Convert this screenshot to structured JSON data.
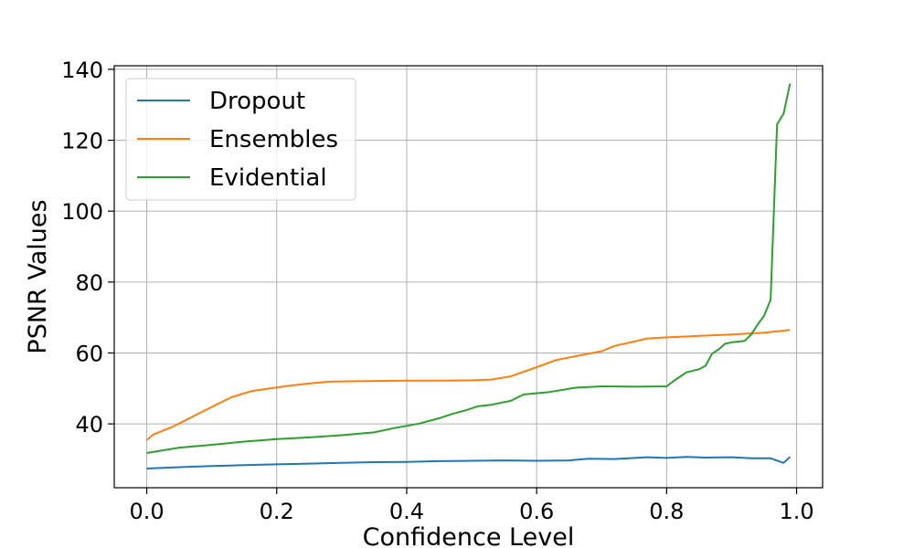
{
  "chart_data": {
    "type": "line",
    "title": "",
    "xlabel": "Confidence Level",
    "ylabel": "PSNR Values",
    "xlim": [
      -0.05,
      1.04
    ],
    "ylim": [
      22,
      141
    ],
    "xticks": [
      0.0,
      0.2,
      0.4,
      0.6,
      0.8,
      1.0
    ],
    "xtick_labels": [
      "0.0",
      "0.2",
      "0.4",
      "0.6",
      "0.8",
      "1.0"
    ],
    "yticks": [
      40,
      60,
      80,
      100,
      120,
      140
    ],
    "ytick_labels": [
      "40",
      "60",
      "80",
      "100",
      "120",
      "140"
    ],
    "grid": true,
    "legend_position": "top-left",
    "series": [
      {
        "name": "Dropout",
        "color": "#1f77b4",
        "x": [
          0.0,
          0.05,
          0.1,
          0.15,
          0.2,
          0.25,
          0.3,
          0.35,
          0.4,
          0.45,
          0.5,
          0.55,
          0.6,
          0.65,
          0.68,
          0.72,
          0.77,
          0.8,
          0.83,
          0.86,
          0.9,
          0.93,
          0.96,
          0.98,
          0.99
        ],
        "y": [
          27.4,
          27.8,
          28.1,
          28.4,
          28.6,
          28.8,
          29.0,
          29.2,
          29.3,
          29.5,
          29.6,
          29.7,
          29.6,
          29.7,
          30.2,
          30.1,
          30.6,
          30.4,
          30.7,
          30.5,
          30.6,
          30.3,
          30.3,
          29.0,
          30.7
        ]
      },
      {
        "name": "Ensembles",
        "color": "#ff7f0e",
        "x": [
          0.0,
          0.01,
          0.04,
          0.07,
          0.1,
          0.13,
          0.16,
          0.19,
          0.22,
          0.25,
          0.28,
          0.31,
          0.35,
          0.4,
          0.45,
          0.5,
          0.53,
          0.56,
          0.6,
          0.63,
          0.66,
          0.7,
          0.72,
          0.75,
          0.77,
          0.8,
          0.85,
          0.9,
          0.95,
          0.99
        ],
        "y": [
          35.4,
          37.0,
          39.2,
          42.0,
          44.8,
          47.5,
          49.2,
          50.0,
          50.8,
          51.4,
          51.9,
          52.0,
          52.1,
          52.2,
          52.2,
          52.3,
          52.5,
          53.4,
          56.0,
          58.0,
          59.1,
          60.5,
          62.0,
          63.2,
          64.1,
          64.4,
          64.8,
          65.2,
          65.7,
          66.5
        ]
      },
      {
        "name": "Evidential",
        "color": "#2ca02c",
        "x": [
          0.0,
          0.02,
          0.05,
          0.1,
          0.15,
          0.2,
          0.25,
          0.3,
          0.35,
          0.38,
          0.42,
          0.45,
          0.47,
          0.49,
          0.51,
          0.53,
          0.56,
          0.58,
          0.62,
          0.66,
          0.7,
          0.75,
          0.8,
          0.81,
          0.83,
          0.85,
          0.86,
          0.87,
          0.88,
          0.89,
          0.9,
          0.92,
          0.93,
          0.94,
          0.95,
          0.96,
          0.97,
          0.98,
          0.99
        ],
        "y": [
          31.8,
          32.4,
          33.3,
          34.1,
          35.0,
          35.7,
          36.2,
          36.8,
          37.6,
          38.8,
          40.1,
          41.6,
          42.8,
          43.8,
          45.0,
          45.4,
          46.5,
          48.3,
          49.0,
          50.2,
          50.6,
          50.5,
          50.6,
          52.0,
          54.5,
          55.4,
          56.4,
          59.8,
          61.0,
          62.6,
          63.0,
          63.4,
          65.2,
          68.0,
          70.5,
          75.0,
          124.5,
          127.5,
          136.0
        ]
      }
    ]
  }
}
